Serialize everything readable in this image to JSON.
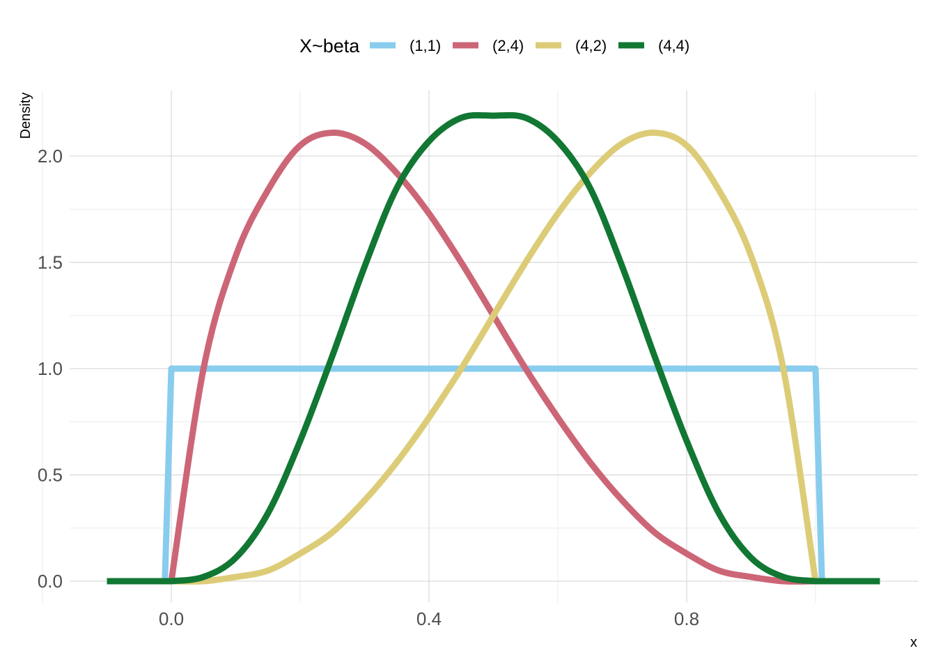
{
  "chart_data": {
    "type": "line",
    "xlabel": "x",
    "ylabel": "Density",
    "xlim": [
      -0.1,
      1.1
    ],
    "ylim": [
      0,
      2.2
    ],
    "x_ticks": [
      0.0,
      0.4,
      0.8
    ],
    "x_tick_labels": [
      "0.0",
      "0.4",
      "0.8"
    ],
    "y_ticks": [
      0.0,
      0.5,
      1.0,
      1.5,
      2.0
    ],
    "y_tick_labels": [
      "0.0",
      "0.5",
      "1.0",
      "1.5",
      "2.0"
    ],
    "grid": true,
    "legend": {
      "title": "X~beta",
      "position": "top"
    },
    "series": [
      {
        "name": "(1,1)",
        "color": "#88CCEE",
        "x": [
          -0.1,
          -0.01,
          0.0,
          0.1,
          0.2,
          0.3,
          0.4,
          0.5,
          0.6,
          0.7,
          0.8,
          0.9,
          1.0,
          1.01,
          1.1
        ],
        "y": [
          0,
          0,
          1,
          1,
          1,
          1,
          1,
          1,
          1,
          1,
          1,
          1,
          1,
          0,
          0
        ]
      },
      {
        "name": "(2,4)",
        "color": "#CC6677",
        "x": [
          -0.1,
          0.0,
          0.05,
          0.1,
          0.15,
          0.2,
          0.25,
          0.3,
          0.35,
          0.4,
          0.45,
          0.5,
          0.55,
          0.6,
          0.65,
          0.7,
          0.75,
          0.8,
          0.85,
          0.9,
          0.95,
          1.0,
          1.1
        ],
        "y": [
          0,
          0,
          1.0,
          1.53,
          1.84,
          2.05,
          2.11,
          2.06,
          1.92,
          1.73,
          1.5,
          1.25,
          1.0,
          0.77,
          0.56,
          0.38,
          0.23,
          0.13,
          0.05,
          0.02,
          0.0,
          0,
          0
        ]
      },
      {
        "name": "(4,2)",
        "color": "#DDCC77",
        "x": [
          -0.1,
          0.0,
          0.05,
          0.1,
          0.15,
          0.2,
          0.25,
          0.3,
          0.35,
          0.4,
          0.45,
          0.5,
          0.55,
          0.6,
          0.65,
          0.7,
          0.75,
          0.8,
          0.85,
          0.9,
          0.95,
          1.0,
          1.1
        ],
        "y": [
          0,
          0,
          0.0,
          0.02,
          0.05,
          0.13,
          0.23,
          0.38,
          0.56,
          0.77,
          1.0,
          1.25,
          1.5,
          1.73,
          1.92,
          2.06,
          2.11,
          2.05,
          1.84,
          1.53,
          1.0,
          0,
          0
        ]
      },
      {
        "name": "(4,4)",
        "color": "#117733",
        "x": [
          -0.1,
          0.0,
          0.05,
          0.1,
          0.15,
          0.2,
          0.25,
          0.3,
          0.35,
          0.4,
          0.45,
          0.5,
          0.55,
          0.6,
          0.65,
          0.7,
          0.75,
          0.8,
          0.85,
          0.9,
          0.95,
          1.0,
          1.1
        ],
        "y": [
          0,
          0,
          0.02,
          0.11,
          0.32,
          0.66,
          1.06,
          1.48,
          1.85,
          2.07,
          2.18,
          2.19,
          2.18,
          2.07,
          1.85,
          1.48,
          1.06,
          0.66,
          0.32,
          0.11,
          0.02,
          0,
          0
        ]
      }
    ]
  }
}
